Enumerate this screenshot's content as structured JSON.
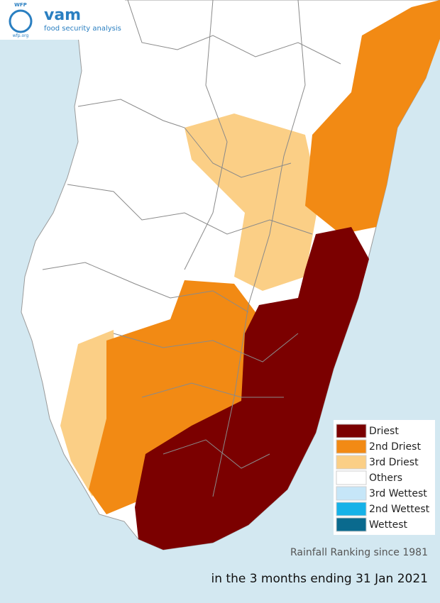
{
  "header": {
    "org": "WFP",
    "logo_text": "vam",
    "subtitle": "food security analysis",
    "url": "wfp.org"
  },
  "legend": {
    "items": [
      {
        "label": "Driest",
        "color": "#7b0000"
      },
      {
        "label": "2nd Driest",
        "color": "#f28a14"
      },
      {
        "label": "3rd Driest",
        "color": "#fbcf86"
      },
      {
        "label": "Others",
        "color": "#ffffff"
      },
      {
        "label": "3rd Wettest",
        "color": "#c6e6f8"
      },
      {
        "label": "2nd Wettest",
        "color": "#16b2e8"
      },
      {
        "label": "Wettest",
        "color": "#0a6a8e"
      }
    ]
  },
  "caption": {
    "line1": "Rainfall Ranking since 1981",
    "line2": "in the 3 months ending 31 Jan 2021"
  }
}
